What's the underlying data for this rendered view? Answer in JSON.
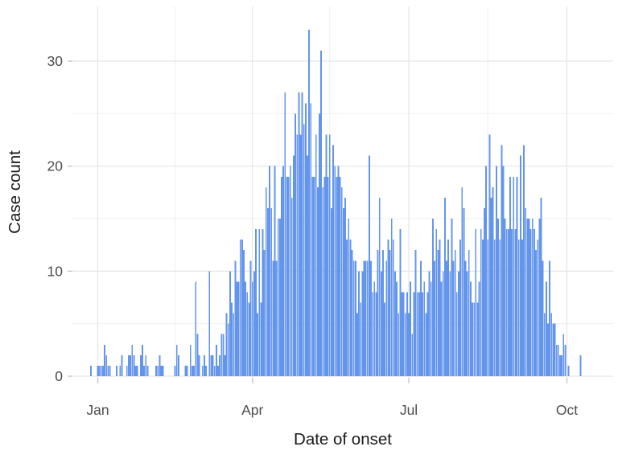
{
  "chart_data": {
    "type": "bar",
    "subtype": "histogram-epicurve-daily-counts",
    "title": "",
    "xlabel": "Date of onset",
    "ylabel": "Case count",
    "x_tick_labels": [
      "Jan",
      "Apr",
      "Jul",
      "Oct"
    ],
    "x_tick_days": [
      0,
      90,
      181,
      273
    ],
    "x_minor_days": [
      45,
      135,
      227
    ],
    "y_tick_labels": [
      "0",
      "10",
      "20",
      "30"
    ],
    "y_tick_values": [
      0,
      10,
      20,
      30
    ],
    "y_minor_values": [
      5,
      15,
      25
    ],
    "ylim": [
      0,
      33
    ],
    "x_range_labels": [
      "Dec 28",
      "Oct 9"
    ],
    "legend": "none",
    "grid": "major and minor, light gray on white panel",
    "bar_color": "#6495ED",
    "grid_major_color": "#E5E5E5",
    "grid_minor_color": "#EFEFEF",
    "tick_color": "#C4C4C4",
    "tick_text_color": "#4D4D4D",
    "max_value": 33,
    "series": [
      {
        "month": "Dec",
        "start_day_of_month": 28,
        "counts": [
          1,
          0,
          0,
          0
        ]
      },
      {
        "month": "Jan",
        "start_day_of_month": 1,
        "counts": [
          1,
          1,
          1,
          1,
          3,
          2,
          1,
          1,
          0,
          0,
          0,
          1,
          0,
          1,
          2,
          0,
          0,
          1,
          2,
          2,
          3,
          2,
          1,
          1,
          0,
          2,
          3,
          1,
          2,
          1,
          0
        ]
      },
      {
        "month": "Feb",
        "start_day_of_month": 1,
        "counts": [
          0,
          0,
          0,
          1,
          1,
          2,
          1,
          1,
          0,
          0,
          0,
          0,
          0,
          0,
          1,
          3,
          2,
          0,
          0,
          0,
          1,
          1,
          0,
          3,
          1,
          1,
          9,
          4
        ]
      },
      {
        "month": "Mar",
        "start_day_of_month": 1,
        "counts": [
          2,
          0,
          1,
          2,
          1,
          0,
          10,
          2,
          2,
          1,
          3,
          1,
          2,
          4,
          4,
          2,
          6,
          5,
          10,
          7,
          6,
          11,
          9,
          9,
          13,
          13,
          12,
          9,
          8,
          7,
          11
        ]
      },
      {
        "month": "Apr",
        "start_day_of_month": 1,
        "counts": [
          9,
          10,
          14,
          6,
          14,
          7,
          14,
          12,
          18,
          16,
          20,
          16,
          11,
          20,
          11,
          15,
          15,
          19,
          20,
          27,
          19,
          19,
          20,
          17,
          21,
          25,
          23,
          27,
          23,
          27
        ]
      },
      {
        "month": "May",
        "start_day_of_month": 1,
        "counts": [
          24,
          26,
          21,
          33,
          26,
          19,
          19,
          23,
          18,
          25,
          31,
          18,
          19,
          23,
          19,
          23,
          16,
          22,
          20,
          19,
          20,
          19,
          18,
          16,
          17,
          13,
          15,
          13,
          12,
          11,
          11
        ]
      },
      {
        "month": "Jun",
        "start_day_of_month": 1,
        "counts": [
          6,
          10,
          7,
          10,
          11,
          11,
          11,
          21,
          11,
          8,
          9,
          8,
          12,
          17,
          10,
          12,
          7,
          11,
          13,
          12,
          15,
          13,
          10,
          9,
          6,
          14,
          8,
          8,
          6,
          8
        ]
      },
      {
        "month": "Jul",
        "start_day_of_month": 1,
        "counts": [
          6,
          9,
          4,
          8,
          12,
          8,
          8,
          11,
          8,
          9,
          6,
          8,
          10,
          9,
          15,
          11,
          14,
          12,
          13,
          9,
          10,
          17,
          11,
          13,
          10,
          15,
          11,
          12,
          8,
          10,
          13
        ]
      },
      {
        "month": "Aug",
        "start_day_of_month": 1,
        "counts": [
          18,
          16,
          11,
          10,
          12,
          9,
          7,
          7,
          14,
          7,
          9,
          14,
          13,
          16,
          20,
          13,
          23,
          17,
          18,
          13,
          20,
          15,
          13,
          22,
          20,
          15,
          14,
          14,
          19,
          14,
          19
        ]
      },
      {
        "month": "Sep",
        "start_day_of_month": 1,
        "counts": [
          14,
          19,
          13,
          21,
          13,
          22,
          16,
          15,
          15,
          14,
          15,
          14,
          12,
          13,
          15,
          17,
          11,
          6,
          9,
          5,
          11,
          6,
          5,
          5,
          3,
          3,
          2,
          2,
          4,
          3
        ]
      },
      {
        "month": "Oct",
        "start_day_of_month": 1,
        "counts": [
          0,
          1,
          0,
          0,
          0,
          0,
          0,
          0,
          2
        ]
      }
    ]
  }
}
